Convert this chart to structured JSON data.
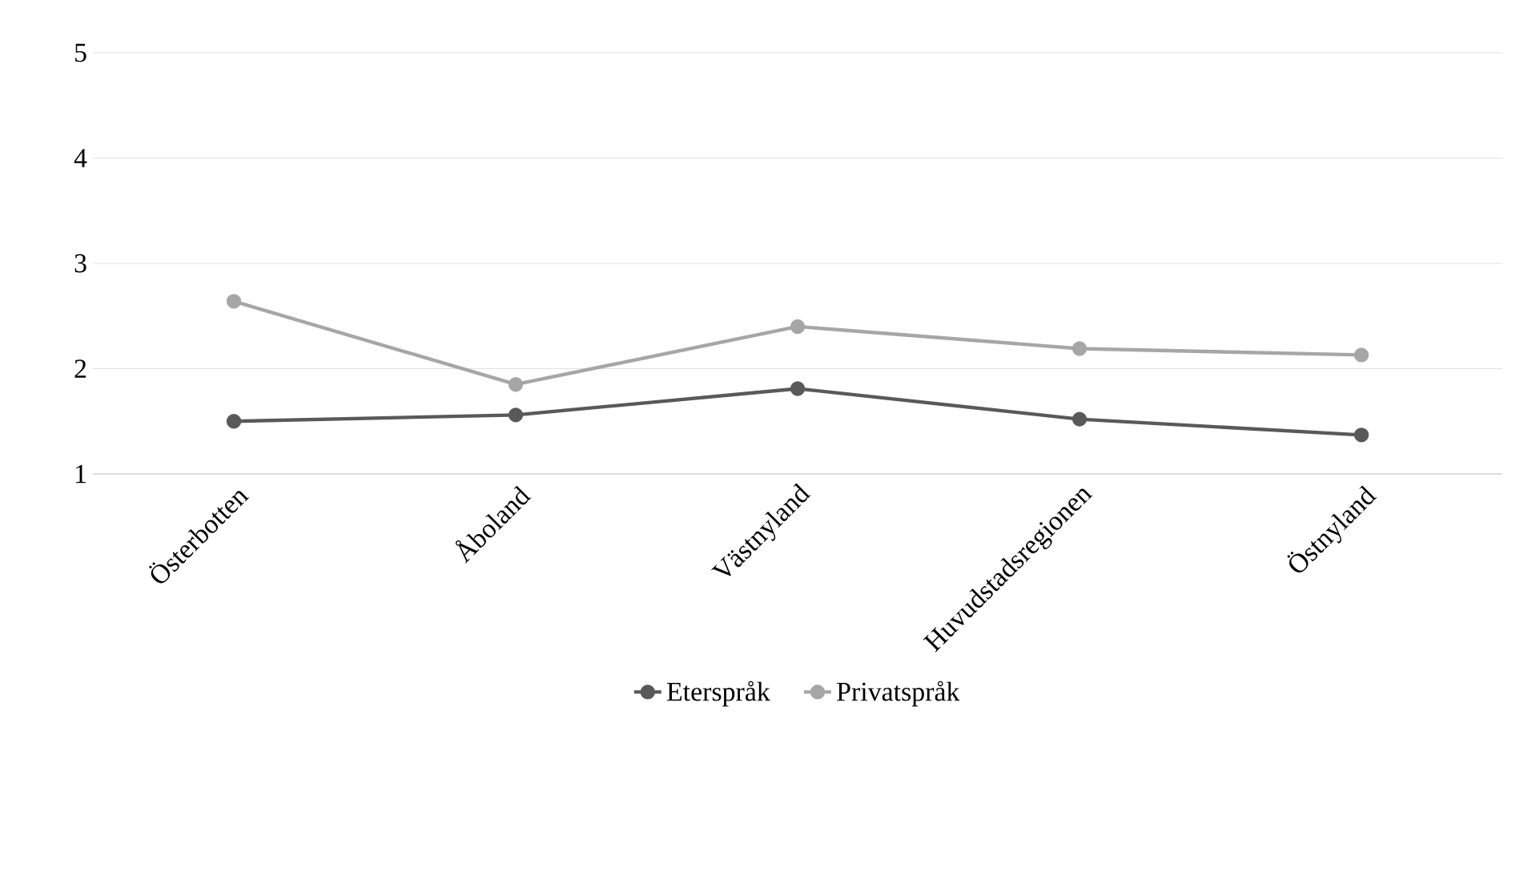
{
  "chart_data": {
    "type": "line",
    "categories": [
      "Österbotten",
      "Åboland",
      "Västnyland",
      "Huvudstadsregionen",
      "Östnyland"
    ],
    "series": [
      {
        "name": "Eterspråk",
        "color": "#595959",
        "values": [
          1.5,
          1.56,
          1.81,
          1.52,
          1.37
        ]
      },
      {
        "name": "Privatspråk",
        "color": "#a6a6a6",
        "values": [
          2.64,
          1.85,
          2.4,
          2.19,
          2.13
        ]
      }
    ],
    "ylim": [
      1,
      5
    ],
    "yticks": [
      1,
      2,
      3,
      4,
      5
    ],
    "grid": "y",
    "legend": "bottom",
    "marker": "circle",
    "line_style": "solid"
  }
}
